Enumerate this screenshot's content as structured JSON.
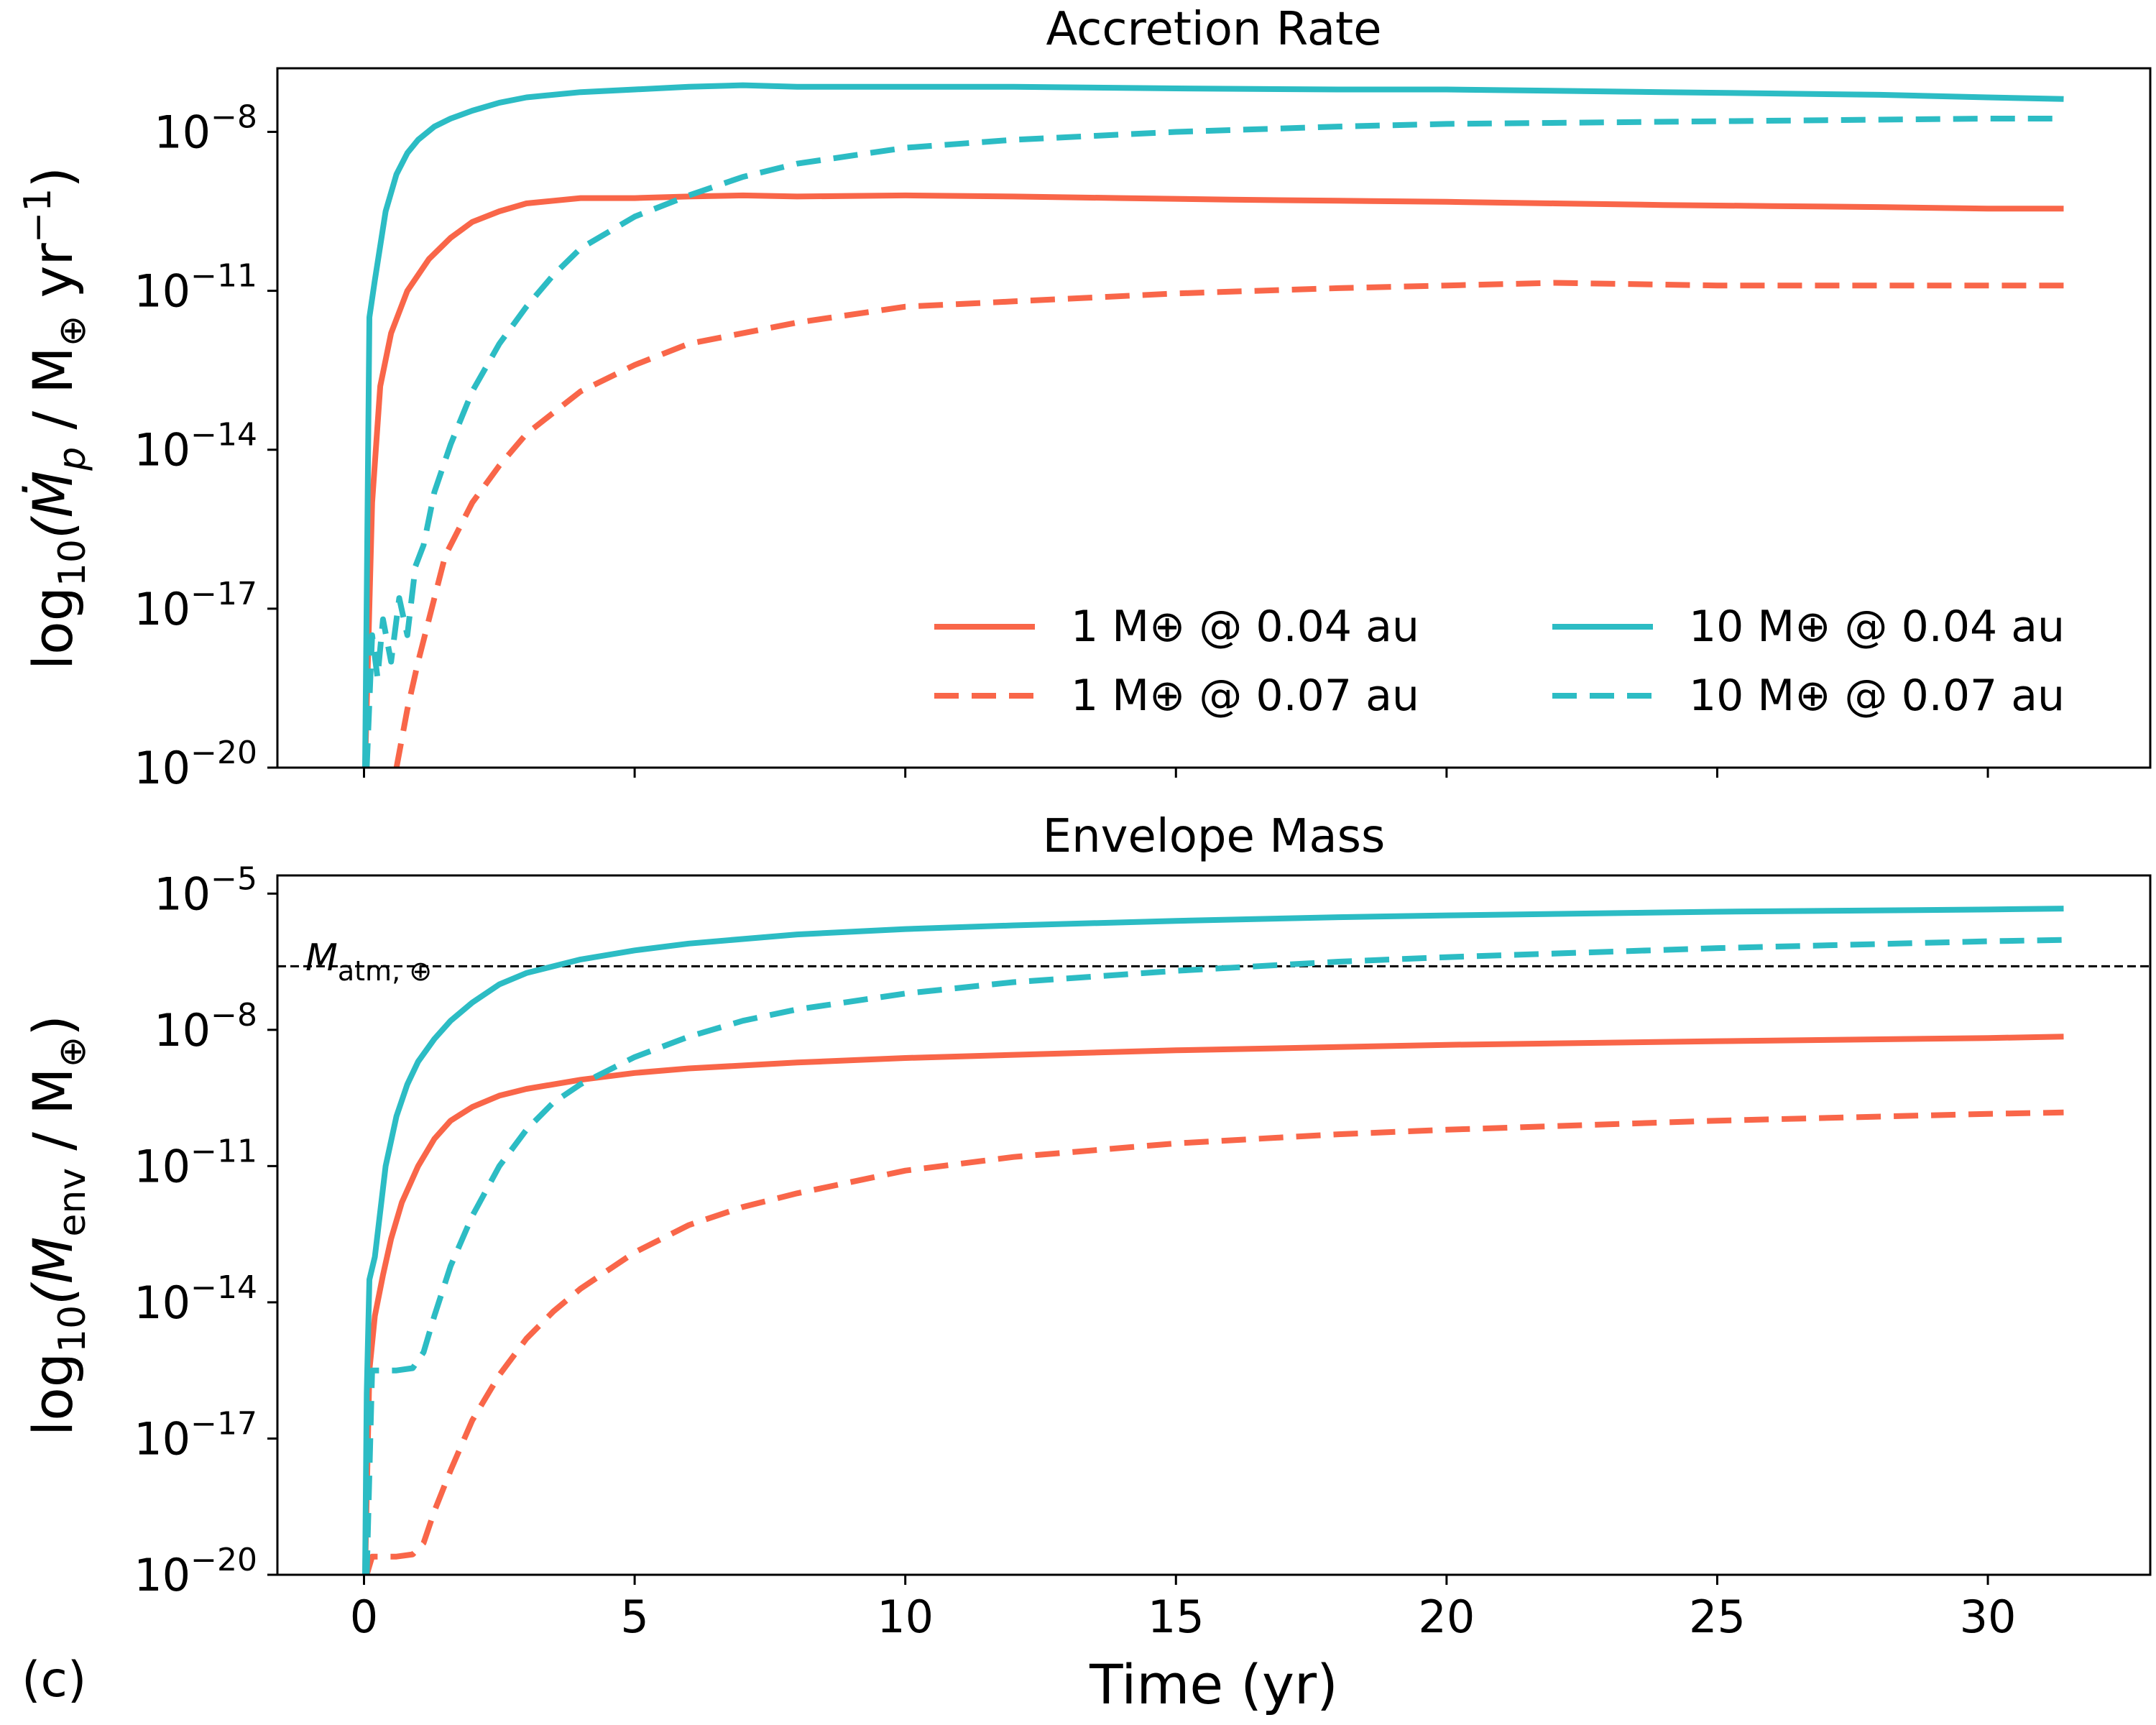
{
  "panel_label": "(c)",
  "legend": {
    "entries": [
      {
        "label": "1 M⊕ @ 0.04 au",
        "color": "#f96649",
        "dash": "solid"
      },
      {
        "label": "1 M⊕ @ 0.07 au",
        "color": "#f96649",
        "dash": "dashed"
      },
      {
        "label": "10 M⊕ @ 0.04 au",
        "color": "#2cbcc4",
        "dash": "solid"
      },
      {
        "label": "10 M⊕ @ 0.07 au",
        "color": "#2cbcc4",
        "dash": "dashed"
      }
    ]
  },
  "reference_line": {
    "label": "M",
    "subscript": "atm, ⊕",
    "value_log10": -6.6
  },
  "chart_data": [
    {
      "type": "line",
      "title": "Accretion Rate",
      "xlabel": "Time (yr)",
      "ylabel": {
        "prefix": "log",
        "prefix_sub": "10",
        "body": "(Ṁ",
        "var_sub": "p",
        "unit_a": " / M",
        "unit_sub": "⊕",
        "unit_b": " yr",
        "unit_sup": "−1",
        "suffix": ")"
      },
      "xlim": [
        -1.6,
        33
      ],
      "ylim": [
        -20,
        -6.8
      ],
      "xticks": [
        0,
        5,
        10,
        15,
        20,
        25,
        30
      ],
      "yticks": [
        {
          "base": "10",
          "exp": "−8",
          "value": -8
        },
        {
          "base": "10",
          "exp": "−11",
          "value": -11
        },
        {
          "base": "10",
          "exp": "−14",
          "value": -14
        },
        {
          "base": "10",
          "exp": "−17",
          "value": -17
        },
        {
          "base": "10",
          "exp": "−20",
          "value": -20
        }
      ],
      "series": [
        {
          "name": "1 M⊕ @ 0.04 au",
          "x": [
            0.02,
            0.15,
            0.3,
            0.5,
            0.8,
            1.2,
            1.6,
            2.0,
            2.5,
            3.0,
            3.5,
            4.0,
            5.0,
            6.0,
            7.0,
            8.0,
            10,
            12,
            14,
            16,
            18,
            20,
            22,
            24,
            26,
            28,
            30,
            31.4
          ],
          "y": [
            -20,
            -15,
            -12.8,
            -11.8,
            -11.0,
            -10.4,
            -10.0,
            -9.7,
            -9.5,
            -9.35,
            -9.3,
            -9.25,
            -9.25,
            -9.22,
            -9.2,
            -9.22,
            -9.2,
            -9.22,
            -9.25,
            -9.28,
            -9.3,
            -9.32,
            -9.35,
            -9.38,
            -9.4,
            -9.42,
            -9.45,
            -9.45
          ]
        },
        {
          "name": "1 M⊕ @ 0.07 au",
          "x": [
            0.6,
            0.8,
            1.0,
            1.2,
            1.5,
            2.0,
            2.5,
            3.0,
            4.0,
            5.0,
            6.0,
            8.0,
            10,
            12,
            15,
            18,
            20,
            22,
            25,
            28,
            30,
            31.4
          ],
          "y": [
            -20,
            -18.9,
            -18.0,
            -17.2,
            -16.0,
            -15.0,
            -14.3,
            -13.7,
            -12.9,
            -12.4,
            -12.0,
            -11.6,
            -11.3,
            -11.2,
            -11.05,
            -10.95,
            -10.9,
            -10.85,
            -10.9,
            -10.9,
            -10.9,
            -10.9
          ]
        },
        {
          "name": "10 M⊕ @ 0.04 au",
          "x": [
            0.02,
            0.1,
            0.2,
            0.4,
            0.6,
            0.8,
            1.0,
            1.3,
            1.6,
            2.0,
            2.5,
            3.0,
            4.0,
            5.0,
            6.0,
            7.0,
            8.0,
            10,
            12,
            15,
            18,
            20,
            24,
            28,
            30,
            31.4
          ],
          "y": [
            -20,
            -11.5,
            -10.8,
            -9.5,
            -8.8,
            -8.4,
            -8.15,
            -7.9,
            -7.75,
            -7.6,
            -7.45,
            -7.35,
            -7.25,
            -7.2,
            -7.15,
            -7.12,
            -7.15,
            -7.15,
            -7.15,
            -7.18,
            -7.2,
            -7.2,
            -7.25,
            -7.3,
            -7.35,
            -7.38
          ]
        },
        {
          "name": "10 M⊕ @ 0.07 au",
          "x": [
            0.05,
            0.15,
            0.25,
            0.35,
            0.5,
            0.65,
            0.8,
            0.95,
            1.1,
            1.3,
            1.6,
            2.0,
            2.5,
            3.0,
            3.5,
            4.0,
            5.0,
            6.0,
            7.0,
            8.0,
            10,
            12,
            15,
            18,
            20,
            25,
            30,
            31.4
          ],
          "y": [
            -20,
            -17.5,
            -18.3,
            -17.2,
            -18.0,
            -16.8,
            -17.5,
            -16.2,
            -15.8,
            -14.8,
            -13.9,
            -12.9,
            -12.0,
            -11.3,
            -10.7,
            -10.2,
            -9.6,
            -9.2,
            -8.85,
            -8.6,
            -8.3,
            -8.15,
            -8.0,
            -7.9,
            -7.85,
            -7.8,
            -7.75,
            -7.75
          ]
        }
      ]
    },
    {
      "type": "line",
      "title": "Envelope Mass",
      "xlabel": "Time (yr)",
      "ylabel": {
        "prefix": "log",
        "prefix_sub": "10",
        "body": "(M",
        "var_sub": "env",
        "unit_a": " / M",
        "unit_sub": "⊕",
        "unit_b": "",
        "unit_sup": "",
        "suffix": ")"
      },
      "xlim": [
        -1.6,
        33
      ],
      "ylim": [
        -20,
        -4.6
      ],
      "xticks": [
        0,
        5,
        10,
        15,
        20,
        25,
        30
      ],
      "yticks": [
        {
          "base": "10",
          "exp": "−5",
          "value": -5
        },
        {
          "base": "10",
          "exp": "−8",
          "value": -8
        },
        {
          "base": "10",
          "exp": "−11",
          "value": -11
        },
        {
          "base": "10",
          "exp": "−14",
          "value": -14
        },
        {
          "base": "10",
          "exp": "−17",
          "value": -17
        },
        {
          "base": "10",
          "exp": "−20",
          "value": -20
        }
      ],
      "series": [
        {
          "name": "1 M⊕ @ 0.04 au",
          "x": [
            0.02,
            0.1,
            0.2,
            0.35,
            0.5,
            0.7,
            1.0,
            1.3,
            1.6,
            2.0,
            2.5,
            3.0,
            4.0,
            5.0,
            6.0,
            8.0,
            10,
            12,
            15,
            18,
            20,
            25,
            30,
            31.4
          ],
          "y": [
            -20,
            -15.5,
            -14.3,
            -13.4,
            -12.6,
            -11.8,
            -11.0,
            -10.4,
            -10.0,
            -9.7,
            -9.45,
            -9.3,
            -9.1,
            -8.95,
            -8.85,
            -8.72,
            -8.62,
            -8.55,
            -8.45,
            -8.38,
            -8.33,
            -8.25,
            -8.18,
            -8.15
          ]
        },
        {
          "name": "1 M⊕ @ 0.07 au",
          "x": [
            0.05,
            0.15,
            0.3,
            0.6,
            0.9,
            1.1,
            1.3,
            1.6,
            2.0,
            2.5,
            3.0,
            3.5,
            4.0,
            5.0,
            6.0,
            7.0,
            8.0,
            10,
            12,
            15,
            18,
            20,
            25,
            30,
            31.4
          ],
          "y": [
            -20,
            -19.6,
            -19.6,
            -19.6,
            -19.55,
            -19.3,
            -18.6,
            -17.7,
            -16.6,
            -15.6,
            -14.8,
            -14.2,
            -13.7,
            -12.9,
            -12.3,
            -11.9,
            -11.6,
            -11.1,
            -10.8,
            -10.5,
            -10.3,
            -10.2,
            -10.0,
            -9.85,
            -9.82
          ]
        },
        {
          "name": "10 M⊕ @ 0.04 au",
          "x": [
            0.02,
            0.05,
            0.1,
            0.2,
            0.4,
            0.6,
            0.8,
            1.0,
            1.3,
            1.6,
            2.0,
            2.5,
            3.0,
            4.0,
            5.0,
            6.0,
            8.0,
            10,
            12,
            15,
            18,
            20,
            25,
            30,
            31.4
          ],
          "y": [
            -20,
            -16.0,
            -13.5,
            -13.0,
            -11.0,
            -9.9,
            -9.2,
            -8.7,
            -8.2,
            -7.8,
            -7.4,
            -7.0,
            -6.75,
            -6.45,
            -6.25,
            -6.1,
            -5.9,
            -5.78,
            -5.7,
            -5.6,
            -5.52,
            -5.48,
            -5.4,
            -5.35,
            -5.33
          ]
        },
        {
          "name": "10 M⊕ @ 0.07 au",
          "x": [
            0.05,
            0.15,
            0.3,
            0.6,
            0.9,
            1.1,
            1.3,
            1.6,
            2.0,
            2.5,
            3.0,
            3.5,
            4.0,
            5.0,
            6.0,
            7.0,
            8.0,
            10,
            12,
            15,
            18,
            20,
            25,
            30,
            31.4
          ],
          "y": [
            -20,
            -15.5,
            -15.5,
            -15.5,
            -15.45,
            -15.1,
            -14.3,
            -13.2,
            -12.1,
            -11.0,
            -10.2,
            -9.6,
            -9.2,
            -8.6,
            -8.15,
            -7.8,
            -7.55,
            -7.2,
            -6.95,
            -6.7,
            -6.5,
            -6.4,
            -6.2,
            -6.05,
            -6.02
          ]
        }
      ]
    }
  ]
}
